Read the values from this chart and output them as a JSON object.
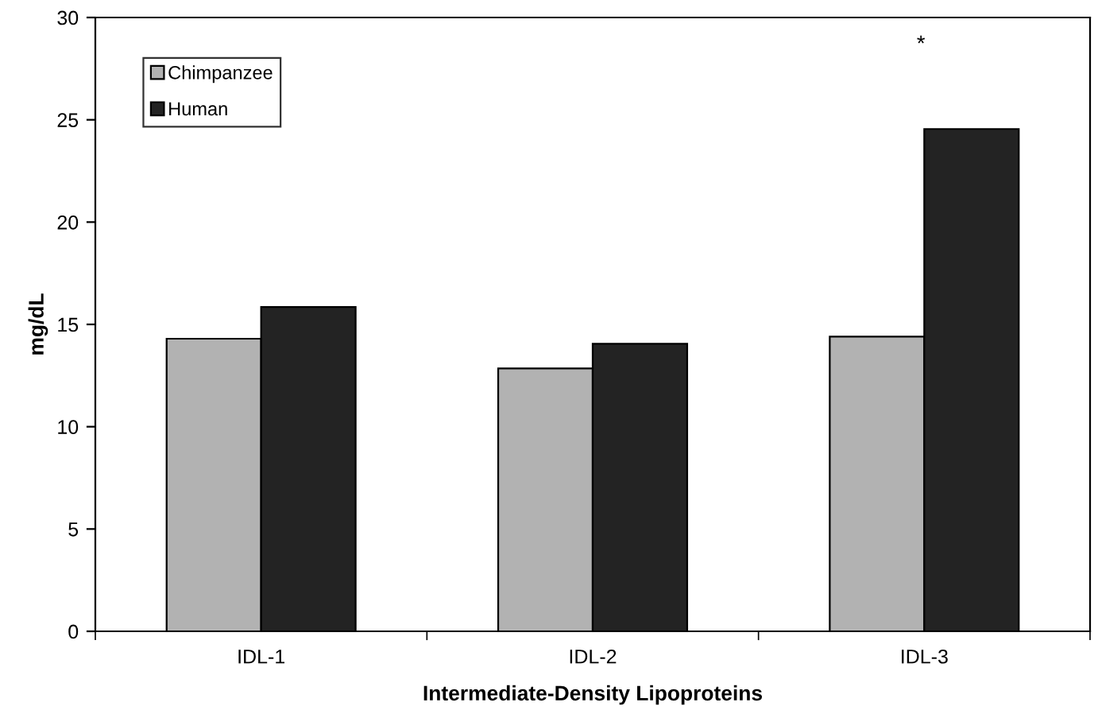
{
  "chart_data": {
    "type": "bar",
    "xlabel": "Intermediate-Density Lipoproteins",
    "ylabel": "mg/dL",
    "categories": [
      "IDL-1",
      "IDL-2",
      "IDL-3"
    ],
    "series": [
      {
        "name": "Chimpanzee",
        "color": "#b2b2b2",
        "values": [
          14.3,
          12.85,
          14.4
        ]
      },
      {
        "name": "Human",
        "color": "#232323",
        "values": [
          15.85,
          14.05,
          24.55
        ]
      }
    ],
    "ylim": [
      0,
      30
    ],
    "yticks": [
      0,
      5,
      10,
      15,
      20,
      25,
      30
    ],
    "grid": false,
    "legend": "top left",
    "annotations": [
      "*"
    ]
  }
}
